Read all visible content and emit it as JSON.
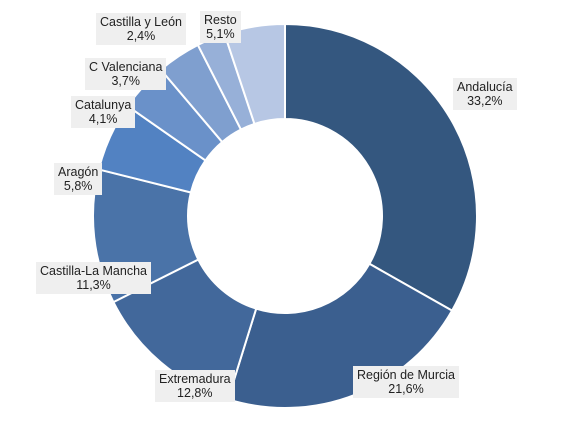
{
  "chart_data": {
    "type": "pie",
    "variant": "donut",
    "title": "",
    "legend": "none",
    "categories": [
      "Andalucía",
      "Región de Murcia",
      "Extremadura",
      "Castilla-La Mancha",
      "Aragón",
      "Catalunya",
      "C Valenciana",
      "Castilla y León",
      "Resto"
    ],
    "values": [
      33.2,
      21.6,
      12.8,
      11.3,
      5.8,
      4.1,
      3.7,
      2.4,
      5.1
    ],
    "value_labels": [
      "33,2%",
      "21,6%",
      "12,8%",
      "11,3%",
      "5,8%",
      "4,1%",
      "3,7%",
      "2,4%",
      "5,1%"
    ],
    "colors": [
      "#34577f",
      "#3b5f8f",
      "#42689b",
      "#4a73a8",
      "#5282c2",
      "#6a91c9",
      "#7f9fcf",
      "#97b0d8",
      "#b7c7e4"
    ]
  }
}
